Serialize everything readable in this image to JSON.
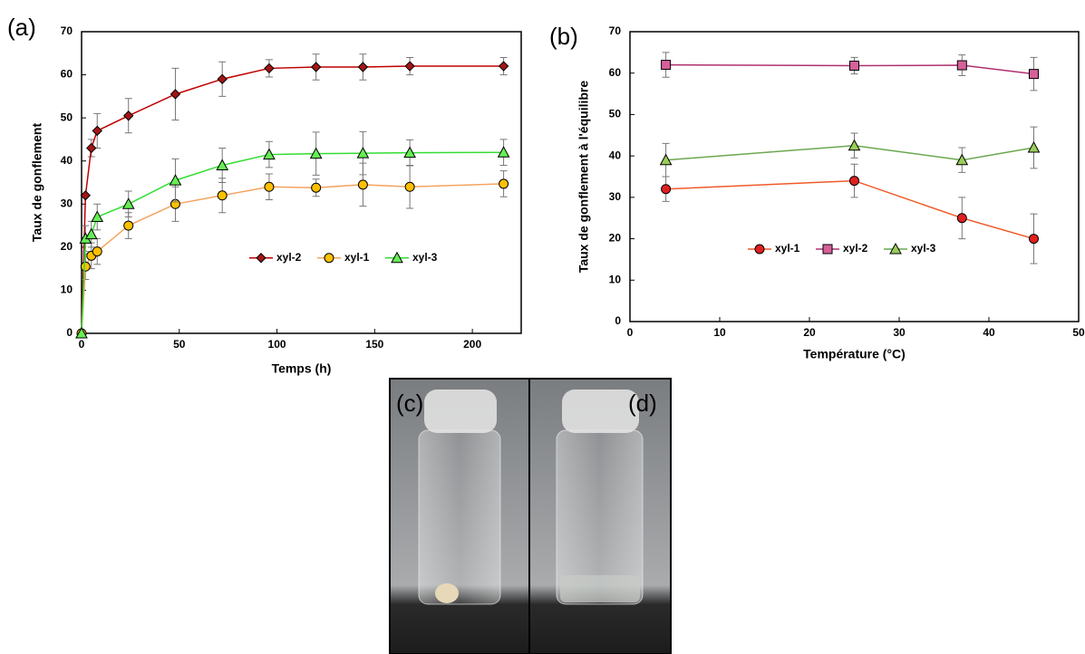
{
  "chart_data": [
    {
      "type": "line",
      "panel_label": "(a)",
      "x_label": "Temps (h)",
      "y_label": "Taux de gonflement",
      "x": [
        0,
        2,
        5,
        8,
        24,
        48,
        72,
        96,
        120,
        144,
        168,
        216
      ],
      "xlim": [
        0,
        225
      ],
      "xticks": [
        0,
        50,
        100,
        150,
        200
      ],
      "ylim": [
        0,
        70
      ],
      "yticks": [
        0,
        10,
        20,
        30,
        40,
        50,
        60,
        70
      ],
      "legend": "lower right",
      "series": [
        {
          "name": "xyl-2",
          "color": "#c00000",
          "marker_color": "#a31515",
          "marker": "diamond",
          "values": [
            0,
            32,
            43,
            47,
            50.5,
            55.5,
            59,
            61.5,
            61.8,
            61.8,
            62,
            62
          ],
          "errors": [
            0,
            0,
            2,
            4,
            4,
            6,
            4,
            2,
            3,
            3,
            2,
            2
          ]
        },
        {
          "name": "xyl-1",
          "color": "#f4a460",
          "marker_color": "#ffc000",
          "marker": "circle",
          "values": [
            0,
            15.5,
            18,
            19,
            25,
            30,
            32,
            34,
            33.8,
            34.5,
            34,
            34.7
          ],
          "errors": [
            0,
            3,
            3,
            3,
            3,
            4,
            4,
            3,
            2,
            5,
            5,
            3
          ]
        },
        {
          "name": "xyl-3",
          "color": "#33dd33",
          "marker_color": "#66ee55",
          "marker": "triangle",
          "values": [
            0,
            22,
            23,
            27,
            30,
            35.5,
            39,
            41.5,
            41.7,
            41.8,
            41.9,
            42
          ],
          "errors": [
            0,
            3,
            3,
            3,
            3,
            5,
            4,
            3,
            5,
            5,
            3,
            3
          ]
        }
      ]
    },
    {
      "type": "line",
      "panel_label": "(b)",
      "x_label": "Température (°C)",
      "y_label": "Taux de gonflement à l'équilibre",
      "x": [
        4,
        25,
        37,
        45
      ],
      "xlim": [
        0,
        50
      ],
      "xticks": [
        0,
        10,
        20,
        30,
        40,
        50
      ],
      "ylim": [
        0,
        70
      ],
      "yticks": [
        0,
        10,
        20,
        30,
        40,
        50,
        60,
        70
      ],
      "legend": "lower left",
      "series": [
        {
          "name": "xyl-1",
          "color": "#f05a28",
          "marker_color": "#e02020",
          "marker": "circle",
          "values": [
            32,
            34,
            25,
            20
          ],
          "errors": [
            3,
            4,
            5,
            6
          ]
        },
        {
          "name": "xyl-2",
          "color": "#b03070",
          "marker_color": "#d6609a",
          "marker": "square",
          "values": [
            62,
            61.8,
            61.9,
            59.8
          ],
          "errors": [
            3,
            2,
            2.5,
            4
          ]
        },
        {
          "name": "xyl-3",
          "color": "#6aa84f",
          "marker_color": "#9acd5a",
          "marker": "triangle",
          "values": [
            39,
            42.5,
            39,
            42
          ],
          "errors": [
            4,
            3,
            3,
            5
          ]
        }
      ]
    }
  ],
  "photos": [
    {
      "label": "(c)"
    },
    {
      "label": "(d)"
    }
  ]
}
